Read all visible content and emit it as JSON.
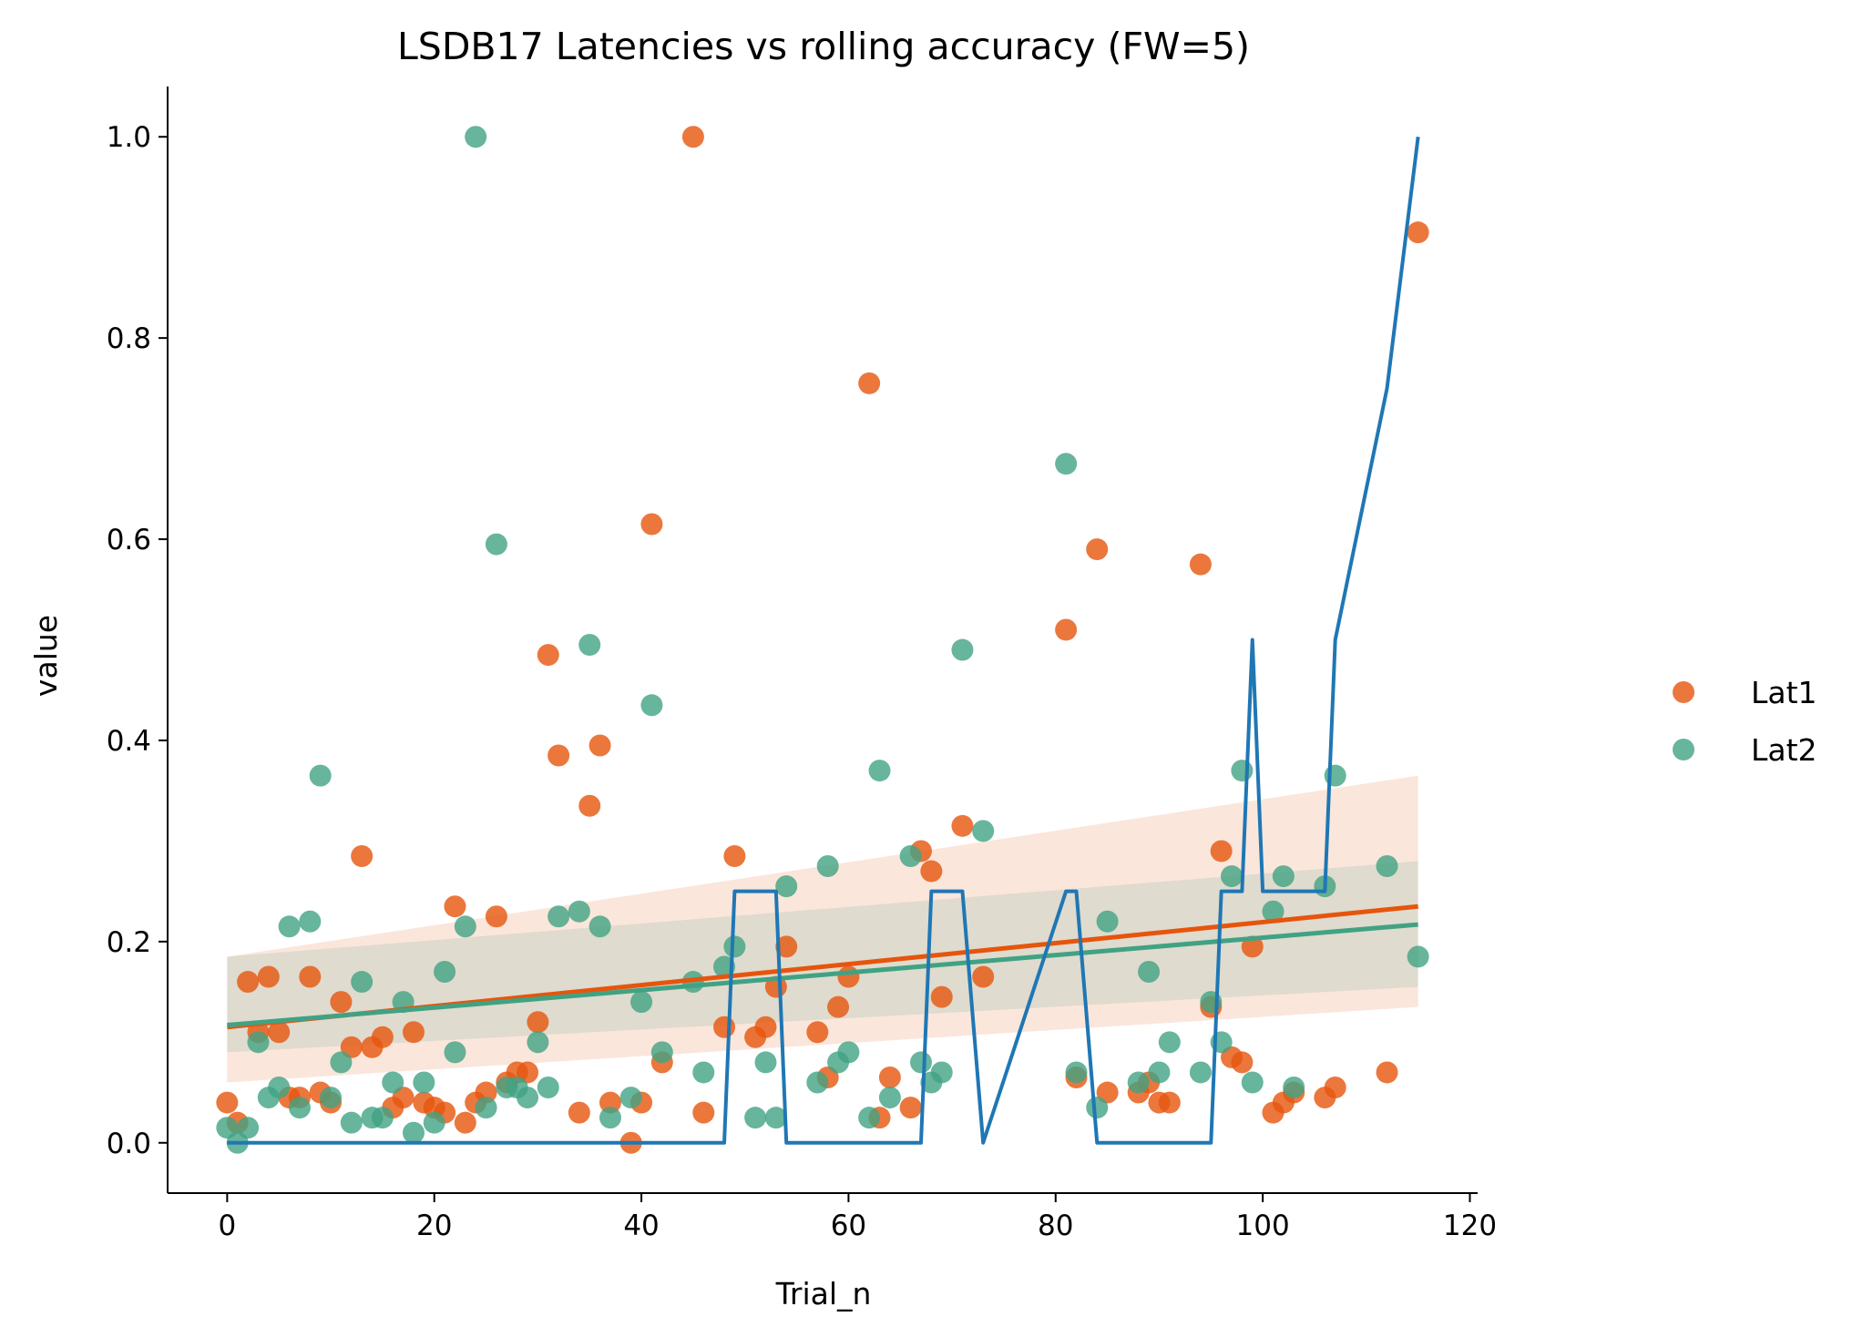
{
  "chart_data": {
    "type": "scatter",
    "title": "LSDB17 Latencies vs rolling accuracy (FW=5)",
    "xlabel": "Trial_n",
    "ylabel": "value",
    "xlim": [
      -5.75,
      120.75
    ],
    "ylim": [
      -0.05,
      1.05
    ],
    "xticks": [
      0,
      20,
      40,
      60,
      80,
      100,
      120
    ],
    "yticks": [
      0.0,
      0.2,
      0.4,
      0.6,
      0.8,
      1.0
    ],
    "xtick_labels": [
      "0",
      "20",
      "40",
      "60",
      "80",
      "100",
      "120"
    ],
    "ytick_labels": [
      "0.0",
      "0.2",
      "0.4",
      "0.6",
      "0.8",
      "1.0"
    ],
    "grid": false,
    "legend_position": "right",
    "series": [
      {
        "name": "Lat1",
        "kind": "scatter",
        "color": "#e6550d",
        "points": [
          [
            0,
            0.04
          ],
          [
            1,
            0.02
          ],
          [
            2,
            0.16
          ],
          [
            3,
            0.11
          ],
          [
            4,
            0.165
          ],
          [
            5,
            0.11
          ],
          [
            6,
            0.045
          ],
          [
            7,
            0.045
          ],
          [
            8,
            0.165
          ],
          [
            9,
            0.05
          ],
          [
            10,
            0.04
          ],
          [
            11,
            0.14
          ],
          [
            12,
            0.095
          ],
          [
            13,
            0.285
          ],
          [
            14,
            0.095
          ],
          [
            15,
            0.105
          ],
          [
            16,
            0.035
          ],
          [
            17,
            0.045
          ],
          [
            18,
            0.11
          ],
          [
            19,
            0.04
          ],
          [
            20,
            0.035
          ],
          [
            21,
            0.03
          ],
          [
            22,
            0.235
          ],
          [
            23,
            0.02
          ],
          [
            24,
            0.04
          ],
          [
            25,
            0.05
          ],
          [
            26,
            0.225
          ],
          [
            27,
            0.06
          ],
          [
            28,
            0.07
          ],
          [
            29,
            0.07
          ],
          [
            30,
            0.12
          ],
          [
            31,
            0.485
          ],
          [
            32,
            0.385
          ],
          [
            34,
            0.03
          ],
          [
            35,
            0.335
          ],
          [
            36,
            0.395
          ],
          [
            37,
            0.04
          ],
          [
            39,
            0.0
          ],
          [
            40,
            0.04
          ],
          [
            41,
            0.615
          ],
          [
            42,
            0.08
          ],
          [
            45,
            1.0
          ],
          [
            46,
            0.03
          ],
          [
            48,
            0.115
          ],
          [
            49,
            0.285
          ],
          [
            51,
            0.105
          ],
          [
            52,
            0.115
          ],
          [
            53,
            0.155
          ],
          [
            54,
            0.195
          ],
          [
            57,
            0.11
          ],
          [
            58,
            0.065
          ],
          [
            59,
            0.135
          ],
          [
            60,
            0.165
          ],
          [
            62,
            0.755
          ],
          [
            63,
            0.025
          ],
          [
            64,
            0.065
          ],
          [
            66,
            0.035
          ],
          [
            67,
            0.29
          ],
          [
            68,
            0.27
          ],
          [
            69,
            0.145
          ],
          [
            71,
            0.315
          ],
          [
            73,
            0.165
          ],
          [
            81,
            0.51
          ],
          [
            82,
            0.065
          ],
          [
            84,
            0.59
          ],
          [
            85,
            0.05
          ],
          [
            88,
            0.05
          ],
          [
            89,
            0.06
          ],
          [
            90,
            0.04
          ],
          [
            91,
            0.04
          ],
          [
            94,
            0.575
          ],
          [
            95,
            0.135
          ],
          [
            96,
            0.29
          ],
          [
            97,
            0.085
          ],
          [
            98,
            0.08
          ],
          [
            99,
            0.195
          ],
          [
            101,
            0.03
          ],
          [
            102,
            0.04
          ],
          [
            103,
            0.05
          ],
          [
            106,
            0.045
          ],
          [
            107,
            0.055
          ],
          [
            112,
            0.07
          ],
          [
            115,
            0.905
          ]
        ],
        "regression": {
          "x": [
            0,
            115
          ],
          "y": [
            0.115,
            0.235
          ],
          "ci_low": [
            0.06,
            0.135
          ],
          "ci_high": [
            0.185,
            0.365
          ]
        }
      },
      {
        "name": "Lat2",
        "kind": "scatter",
        "color": "#41a283",
        "points": [
          [
            0,
            0.015
          ],
          [
            1,
            0.0
          ],
          [
            2,
            0.015
          ],
          [
            3,
            0.1
          ],
          [
            4,
            0.045
          ],
          [
            5,
            0.055
          ],
          [
            6,
            0.215
          ],
          [
            7,
            0.035
          ],
          [
            8,
            0.22
          ],
          [
            9,
            0.365
          ],
          [
            10,
            0.045
          ],
          [
            11,
            0.08
          ],
          [
            12,
            0.02
          ],
          [
            13,
            0.16
          ],
          [
            14,
            0.025
          ],
          [
            15,
            0.025
          ],
          [
            16,
            0.06
          ],
          [
            17,
            0.14
          ],
          [
            18,
            0.01
          ],
          [
            19,
            0.06
          ],
          [
            20,
            0.02
          ],
          [
            21,
            0.17
          ],
          [
            22,
            0.09
          ],
          [
            23,
            0.215
          ],
          [
            24,
            1.0
          ],
          [
            25,
            0.035
          ],
          [
            26,
            0.595
          ],
          [
            27,
            0.055
          ],
          [
            28,
            0.055
          ],
          [
            29,
            0.045
          ],
          [
            30,
            0.1
          ],
          [
            31,
            0.055
          ],
          [
            32,
            0.225
          ],
          [
            34,
            0.23
          ],
          [
            35,
            0.495
          ],
          [
            36,
            0.215
          ],
          [
            37,
            0.025
          ],
          [
            39,
            0.045
          ],
          [
            40,
            0.14
          ],
          [
            41,
            0.435
          ],
          [
            42,
            0.09
          ],
          [
            45,
            0.16
          ],
          [
            46,
            0.07
          ],
          [
            48,
            0.175
          ],
          [
            49,
            0.195
          ],
          [
            51,
            0.025
          ],
          [
            52,
            0.08
          ],
          [
            53,
            0.025
          ],
          [
            54,
            0.255
          ],
          [
            57,
            0.06
          ],
          [
            58,
            0.275
          ],
          [
            59,
            0.08
          ],
          [
            60,
            0.09
          ],
          [
            62,
            0.025
          ],
          [
            63,
            0.37
          ],
          [
            64,
            0.045
          ],
          [
            66,
            0.285
          ],
          [
            67,
            0.08
          ],
          [
            68,
            0.06
          ],
          [
            69,
            0.07
          ],
          [
            71,
            0.49
          ],
          [
            73,
            0.31
          ],
          [
            81,
            0.675
          ],
          [
            82,
            0.07
          ],
          [
            84,
            0.035
          ],
          [
            85,
            0.22
          ],
          [
            88,
            0.06
          ],
          [
            89,
            0.17
          ],
          [
            90,
            0.07
          ],
          [
            91,
            0.1
          ],
          [
            94,
            0.07
          ],
          [
            95,
            0.14
          ],
          [
            96,
            0.1
          ],
          [
            97,
            0.265
          ],
          [
            98,
            0.37
          ],
          [
            99,
            0.06
          ],
          [
            101,
            0.23
          ],
          [
            102,
            0.265
          ],
          [
            103,
            0.055
          ],
          [
            106,
            0.255
          ],
          [
            107,
            0.365
          ],
          [
            112,
            0.275
          ],
          [
            115,
            0.185
          ]
        ],
        "regression": {
          "x": [
            0,
            115
          ],
          "y": [
            0.117,
            0.217
          ],
          "ci_low": [
            0.09,
            0.155
          ],
          "ci_high": [
            0.185,
            0.28
          ]
        }
      },
      {
        "name": "rolling accuracy",
        "kind": "line",
        "color": "#1f77b4",
        "points": [
          [
            0,
            0
          ],
          [
            48,
            0
          ],
          [
            49,
            0.25
          ],
          [
            53,
            0.25
          ],
          [
            54,
            0
          ],
          [
            67,
            0
          ],
          [
            68,
            0.25
          ],
          [
            71,
            0.25
          ],
          [
            73,
            0
          ],
          [
            81,
            0.25
          ],
          [
            82,
            0.25
          ],
          [
            84,
            0
          ],
          [
            95,
            0
          ],
          [
            96,
            0.25
          ],
          [
            98,
            0.25
          ],
          [
            99,
            0.5
          ],
          [
            100,
            0.25
          ],
          [
            106,
            0.25
          ],
          [
            107,
            0.5
          ],
          [
            112,
            0.75
          ],
          [
            115,
            1.0
          ]
        ]
      }
    ]
  }
}
